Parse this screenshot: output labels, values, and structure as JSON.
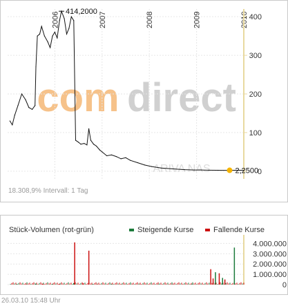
{
  "chart_data": [
    {
      "type": "line",
      "title": "",
      "x_labels": [
        "2006",
        "2007",
        "2008",
        "2009",
        "2010"
      ],
      "y_ticks": [
        0,
        100,
        200,
        300,
        400
      ],
      "ylim": [
        -20,
        420
      ],
      "grid": true,
      "watermark": "comdirect",
      "watermark_sub": "ARIVA NAS",
      "annotations": [
        {
          "text": "414,2000",
          "kind": "max"
        },
        {
          "text": "2,2500",
          "kind": "last"
        }
      ],
      "series": [
        {
          "values": [
            [
              2005.05,
              130
            ],
            [
              2005.1,
              120
            ],
            [
              2005.15,
              145
            ],
            [
              2005.22,
              170
            ],
            [
              2005.3,
              200
            ],
            [
              2005.38,
              185
            ],
            [
              2005.45,
              165
            ],
            [
              2005.52,
              160
            ],
            [
              2005.58,
              170
            ],
            [
              2005.6,
              270
            ],
            [
              2005.63,
              350
            ],
            [
              2005.68,
              355
            ],
            [
              2005.72,
              375
            ],
            [
              2005.78,
              350
            ],
            [
              2005.85,
              335
            ],
            [
              2005.9,
              320
            ],
            [
              2005.95,
              350
            ],
            [
              2006.0,
              360
            ],
            [
              2006.05,
              345
            ],
            [
              2006.1,
              390
            ],
            [
              2006.14,
              414.2
            ],
            [
              2006.2,
              395
            ],
            [
              2006.25,
              355
            ],
            [
              2006.3,
              370
            ],
            [
              2006.35,
              400
            ],
            [
              2006.4,
              390
            ],
            [
              2006.44,
              80
            ],
            [
              2006.5,
              75
            ],
            [
              2006.55,
              70
            ],
            [
              2006.62,
              72
            ],
            [
              2006.68,
              68
            ],
            [
              2006.72,
              110
            ],
            [
              2006.76,
              80
            ],
            [
              2006.82,
              70
            ],
            [
              2006.88,
              65
            ],
            [
              2006.95,
              55
            ],
            [
              2007.0,
              50
            ],
            [
              2007.1,
              40
            ],
            [
              2007.2,
              42
            ],
            [
              2007.3,
              38
            ],
            [
              2007.4,
              32
            ],
            [
              2007.5,
              35
            ],
            [
              2007.6,
              28
            ],
            [
              2007.75,
              22
            ],
            [
              2007.9,
              16
            ],
            [
              2008.05,
              12
            ],
            [
              2008.25,
              8
            ],
            [
              2008.5,
              6
            ],
            [
              2008.75,
              4
            ],
            [
              2008.95,
              3
            ],
            [
              2009.1,
              3
            ],
            [
              2009.25,
              2.5
            ],
            [
              2009.45,
              2.3
            ],
            [
              2009.7,
              2.25
            ]
          ]
        }
      ]
    },
    {
      "type": "bar",
      "title": "Stück-Volumen (rot-grün)",
      "y_ticks": [
        0,
        1000000,
        2000000,
        3000000,
        4000000
      ],
      "y_tick_labels": [
        "0",
        "1.000.000",
        "2.000.000",
        "3.000.000",
        "4.000.000"
      ],
      "ylim": [
        0,
        4700000
      ],
      "series": [
        {
          "name": "Steigende Kurse",
          "color": "#1b7a3a",
          "values": [
            [
              2005.2,
              60000
            ],
            [
              2005.6,
              80000
            ],
            [
              2005.95,
              50000
            ],
            [
              2006.4,
              140000
            ],
            [
              2006.8,
              40000
            ],
            [
              2007.2,
              60000
            ],
            [
              2007.6,
              35000
            ],
            [
              2008.2,
              30000
            ],
            [
              2008.9,
              45000
            ],
            [
              2009.4,
              1200000
            ],
            [
              2009.55,
              650000
            ],
            [
              2009.8,
              3600000
            ]
          ]
        },
        {
          "name": "Fallende Kurse",
          "color": "#cc1010",
          "values": [
            [
              2005.4,
              40000
            ],
            [
              2005.75,
              70000
            ],
            [
              2006.1,
              60000
            ],
            [
              2006.42,
              4100000
            ],
            [
              2006.6,
              120000
            ],
            [
              2006.72,
              3300000
            ],
            [
              2006.9,
              50000
            ],
            [
              2007.4,
              30000
            ],
            [
              2007.8,
              25000
            ],
            [
              2008.5,
              30000
            ],
            [
              2009.3,
              1500000
            ],
            [
              2009.35,
              600000
            ],
            [
              2009.48,
              1100000
            ],
            [
              2009.6,
              500000
            ]
          ]
        }
      ]
    }
  ],
  "price_footer": "18.308,9%  Intervall: 1 Tag",
  "volume_header": {
    "title": "Stück-Volumen (rot-grün)",
    "legend_up": "Steigende Kurse",
    "legend_down": "Fallende Kurse"
  },
  "bottom_footer": "26.03.10    15:48 Uhr",
  "colors": {
    "line": "#111111",
    "up": "#1b7a3a",
    "down": "#cc1010",
    "axis": "#e8d9a0",
    "grid": "#e6e6e6",
    "watermark_orange": "#f6c28a",
    "watermark_gray": "#d0d0d0",
    "last_marker": "#f5b400"
  }
}
